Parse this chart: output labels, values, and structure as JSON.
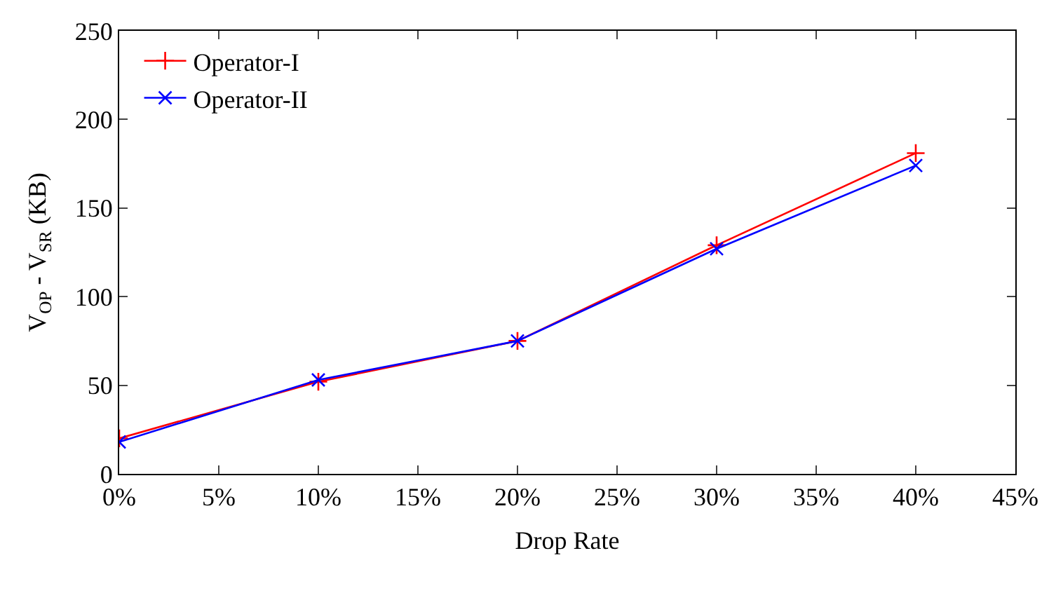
{
  "chart_data": {
    "type": "line",
    "xlabel": "Drop Rate",
    "ylabel": "V$_{OP}$ - V$_{SR}$ (KB)",
    "x": [
      0,
      10,
      20,
      30,
      40
    ],
    "series": [
      {
        "name": "Operator-I",
        "color": "#ff0000",
        "values": [
          20,
          52,
          75,
          129,
          181
        ],
        "marker": "cross"
      },
      {
        "name": "Operator-II",
        "color": "#0000ff",
        "values": [
          18,
          53,
          75,
          127,
          174
        ],
        "marker": "x"
      }
    ],
    "xlim": [
      0,
      45
    ],
    "xticks": [
      {
        "value": 0,
        "label": "0%"
      },
      {
        "value": 5,
        "label": "5%"
      },
      {
        "value": 10,
        "label": "10%"
      },
      {
        "value": 15,
        "label": "15%"
      },
      {
        "value": 20,
        "label": "20%"
      },
      {
        "value": 25,
        "label": "25%"
      },
      {
        "value": 30,
        "label": "30%"
      },
      {
        "value": 35,
        "label": "35%"
      },
      {
        "value": 40,
        "label": "40%"
      },
      {
        "value": 45,
        "label": "45%"
      }
    ],
    "ylim": [
      0,
      250
    ],
    "yticks": [
      0,
      50,
      100,
      150,
      200,
      250
    ],
    "legend": "top left",
    "line_style": "solid"
  }
}
